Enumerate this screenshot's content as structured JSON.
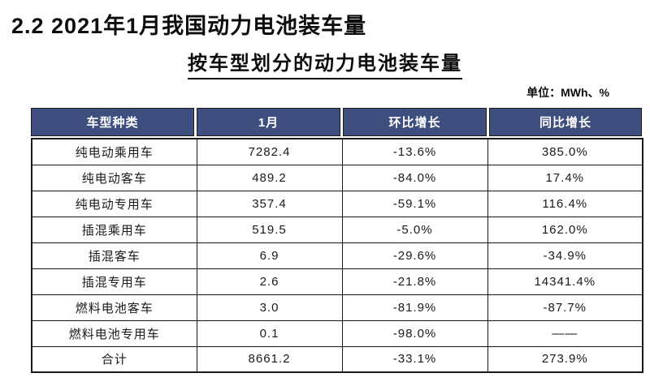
{
  "page": {
    "title": "2.2 2021年1月我国动力电池装车量",
    "subtitle": "按车型划分的动力电池装车量",
    "unit_note": "单位：MWh、%"
  },
  "table": {
    "columns": [
      "车型种类",
      "1月",
      "环比增长",
      "同比增长"
    ],
    "rows": [
      {
        "type": "纯电动乘用车",
        "jan": "7282.4",
        "mom": "-13.6%",
        "yoy": "385.0%"
      },
      {
        "type": "纯电动客车",
        "jan": "489.2",
        "mom": "-84.0%",
        "yoy": "17.4%"
      },
      {
        "type": "纯电动专用车",
        "jan": "357.4",
        "mom": "-59.1%",
        "yoy": "116.4%"
      },
      {
        "type": "插混乘用车",
        "jan": "519.5",
        "mom": "-5.0%",
        "yoy": "162.0%"
      },
      {
        "type": "插混客车",
        "jan": "6.9",
        "mom": "-29.6%",
        "yoy": "-34.9%"
      },
      {
        "type": "插混专用车",
        "jan": "2.6",
        "mom": "-21.8%",
        "yoy": "14341.4%"
      },
      {
        "type": "燃料电池客车",
        "jan": "3.0",
        "mom": "-81.9%",
        "yoy": "-87.7%"
      },
      {
        "type": "燃料电池专用车",
        "jan": "0.1",
        "mom": "-98.0%",
        "yoy": "——"
      },
      {
        "type": "合计",
        "jan": "8661.2",
        "mom": "-33.1%",
        "yoy": "273.9%"
      }
    ]
  },
  "colors": {
    "header_bg": "#3e4e7e",
    "header_text": "#ffffff",
    "border": "#1a1a1a",
    "background": "#ffffff"
  }
}
